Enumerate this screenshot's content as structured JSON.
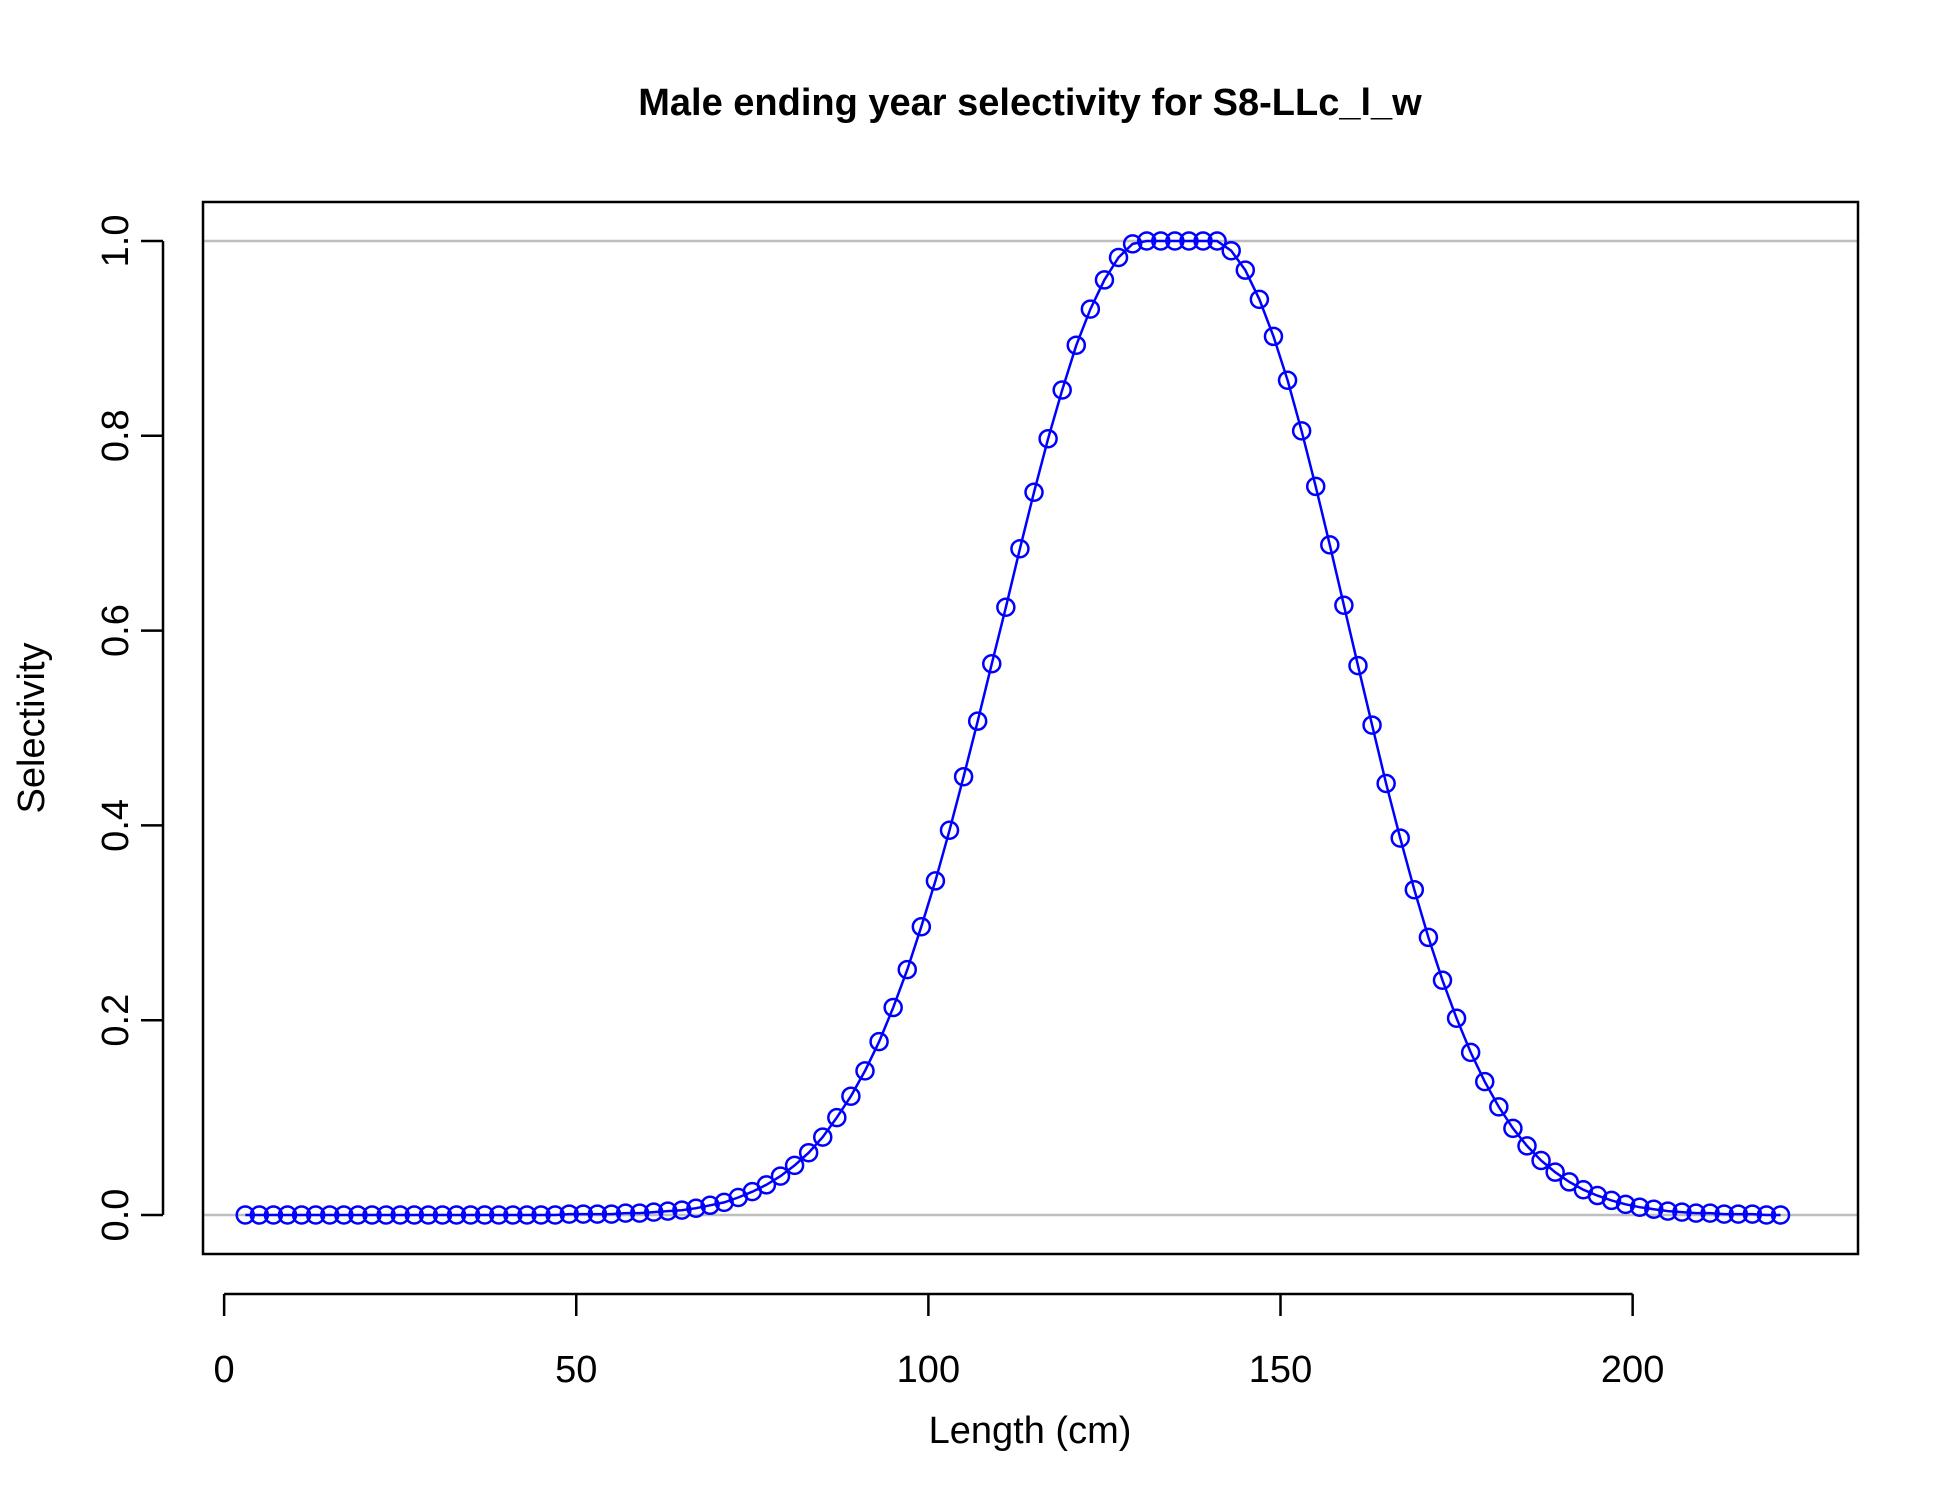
{
  "chart_data": {
    "type": "line",
    "title": "Male ending year selectivity for S8-LLc_l_w",
    "xlabel": "Length (cm)",
    "ylabel": "Selectivity",
    "xlim": [
      -3,
      232
    ],
    "ylim": [
      -0.04,
      1.04
    ],
    "x_ticks": [
      0,
      50,
      100,
      150,
      200
    ],
    "x_tick_labels": [
      "0",
      "50",
      "100",
      "150",
      "200"
    ],
    "y_ticks": [
      0,
      0.2,
      0.4,
      0.6,
      0.8,
      1.0
    ],
    "y_tick_labels": [
      "0.0",
      "0.2",
      "0.4",
      "0.6",
      "0.8",
      "1.0"
    ],
    "reference_lines": [
      0,
      1
    ],
    "grid": false,
    "colors": {
      "series": "#0000ff",
      "reference": "#bebebe",
      "axis": "#000000"
    },
    "markers": "open-circle",
    "series": [
      {
        "x": [
          3,
          5,
          7,
          9,
          11,
          13,
          15,
          17,
          19,
          21,
          23,
          25,
          27,
          29,
          31,
          33,
          35,
          37,
          39,
          41,
          43,
          45,
          47,
          49,
          51,
          53,
          55,
          57,
          59,
          61,
          63,
          65,
          67,
          69,
          71,
          73,
          75,
          77,
          79,
          81,
          83,
          85,
          87,
          89,
          91,
          93,
          95,
          97,
          99,
          101,
          103,
          105,
          107,
          109,
          111,
          113,
          115,
          117,
          119,
          121,
          123,
          125,
          127,
          129,
          131,
          133,
          135,
          137,
          139,
          141,
          143,
          145,
          147,
          149,
          151,
          153,
          155,
          157,
          159,
          161,
          163,
          165,
          167,
          169,
          171,
          173,
          175,
          177,
          179,
          181,
          183,
          185,
          187,
          189,
          191,
          193,
          195,
          197,
          199,
          201,
          203,
          205,
          207,
          209,
          211,
          213,
          215,
          217,
          219,
          221
        ],
        "values": [
          0,
          0,
          0,
          0,
          0,
          0,
          0,
          0,
          0,
          0,
          0,
          0,
          0,
          0,
          0,
          0,
          0,
          0,
          0,
          0,
          0,
          0,
          0,
          0.001,
          0.001,
          0.001,
          0.001,
          0.002,
          0.002,
          0.003,
          0.004,
          0.005,
          0.007,
          0.01,
          0.013,
          0.018,
          0.024,
          0.031,
          0.04,
          0.051,
          0.064,
          0.08,
          0.1,
          0.122,
          0.148,
          0.178,
          0.213,
          0.252,
          0.296,
          0.343,
          0.395,
          0.45,
          0.507,
          0.566,
          0.624,
          0.684,
          0.742,
          0.797,
          0.847,
          0.893,
          0.93,
          0.96,
          0.983,
          0.997,
          1.0,
          1.0,
          1.0,
          1.0,
          1.0,
          1.0,
          0.99,
          0.97,
          0.94,
          0.902,
          0.857,
          0.805,
          0.748,
          0.688,
          0.626,
          0.564,
          0.503,
          0.443,
          0.387,
          0.334,
          0.285,
          0.241,
          0.202,
          0.167,
          0.137,
          0.111,
          0.089,
          0.071,
          0.056,
          0.044,
          0.034,
          0.026,
          0.02,
          0.015,
          0.011,
          0.008,
          0.006,
          0.004,
          0.003,
          0.002,
          0.002,
          0.001,
          0.001,
          0.001,
          0,
          0
        ]
      }
    ]
  }
}
